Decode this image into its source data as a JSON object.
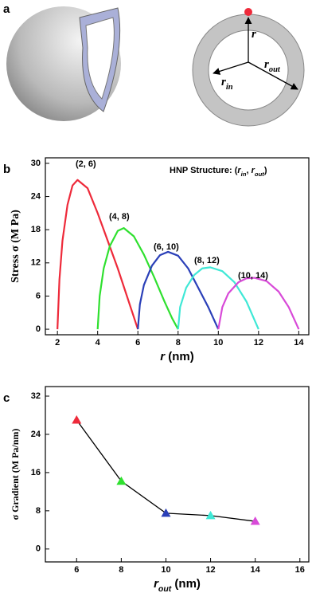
{
  "panel_labels": [
    "a",
    "b",
    "c"
  ],
  "diagram": {
    "labels": [
      [
        "r"
      ],
      [
        "r",
        "in"
      ],
      [
        "r",
        "out"
      ]
    ]
  },
  "chart_data": [
    {
      "type": "line",
      "x_label": [
        "r",
        " (nm)"
      ],
      "y_label": "Stress σ (M Pa)",
      "legend_title": [
        "HNP Structure: (",
        "r",
        "in",
        ", ",
        "r",
        "out",
        ")"
      ],
      "xlim": [
        1.4,
        14.5
      ],
      "ylim": [
        -1,
        31
      ],
      "xticks": [
        2,
        4,
        6,
        8,
        10,
        12,
        14
      ],
      "yticks": [
        0,
        6,
        12,
        18,
        24,
        30
      ],
      "series": [
        {
          "name": "(2, 6)",
          "color": "#ee2a3a",
          "x": [
            2,
            2.1,
            2.25,
            2.5,
            2.75,
            3,
            3.5,
            4,
            4.5,
            5,
            5.5,
            6
          ],
          "values": [
            0,
            9,
            16,
            22.5,
            26,
            27,
            25.5,
            21,
            16,
            11,
            5.5,
            0
          ]
        },
        {
          "name": "(4, 8)",
          "color": "#2fe02f",
          "x": [
            4,
            4.1,
            4.3,
            4.6,
            5,
            5.3,
            5.8,
            6.3,
            6.8,
            7.3,
            7.7,
            8
          ],
          "values": [
            0,
            6,
            11,
            15,
            17.8,
            18.3,
            16.8,
            13.5,
            9.5,
            5.2,
            2,
            0
          ]
        },
        {
          "name": "(6, 10)",
          "color": "#2a3fb8",
          "x": [
            6,
            6.1,
            6.3,
            6.7,
            7.1,
            7.5,
            8,
            8.5,
            9,
            9.5,
            10
          ],
          "values": [
            0,
            4.5,
            8,
            11.5,
            13.4,
            14,
            13.3,
            11,
            7.5,
            4,
            0
          ]
        },
        {
          "name": "(8, 12)",
          "color": "#3fe8d6",
          "x": [
            8,
            8.1,
            8.4,
            8.8,
            9.2,
            9.6,
            10.2,
            10.8,
            11.4,
            12
          ],
          "values": [
            0,
            4,
            7.5,
            9.8,
            11,
            11.2,
            10.5,
            8.5,
            5,
            0
          ]
        },
        {
          "name": "(10, 14)",
          "color": "#d84ad8",
          "x": [
            10,
            10.2,
            10.5,
            11,
            11.4,
            11.8,
            12.4,
            13,
            13.5,
            14
          ],
          "values": [
            0,
            4,
            6.5,
            8.5,
            9.2,
            9.3,
            8.7,
            6.8,
            4,
            0
          ]
        }
      ]
    },
    {
      "type": "line",
      "x_label": [
        "r",
        "out",
        " (nm)"
      ],
      "y_label": "σ Gradient (M Pa/nm)",
      "xlim": [
        4.6,
        16.4
      ],
      "ylim": [
        -2.7,
        34
      ],
      "xticks": [
        6,
        8,
        10,
        12,
        14,
        16
      ],
      "yticks": [
        0,
        8,
        16,
        24,
        32
      ],
      "x": [
        6,
        8,
        10,
        12,
        14
      ],
      "series": [
        {
          "color": "#000000",
          "marker_colors": [
            "#ee2a3a",
            "#2fe02f",
            "#2a3fb8",
            "#3fe8d6",
            "#d84ad8"
          ],
          "values": [
            27,
            14.2,
            7.5,
            7,
            5.8
          ]
        }
      ]
    }
  ]
}
